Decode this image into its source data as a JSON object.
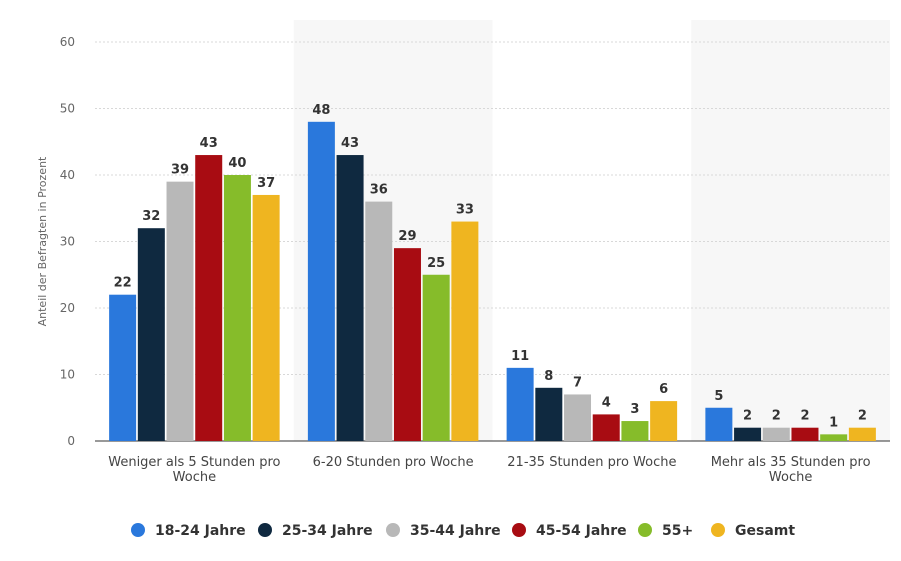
{
  "chart_data": {
    "type": "bar",
    "ylabel": "Anteil der Befragten in Prozent",
    "ylim": [
      0,
      60
    ],
    "yticks": [
      0,
      10,
      20,
      30,
      40,
      50,
      60
    ],
    "grid": true,
    "legend_position": "bottom",
    "categories": [
      [
        "Weniger als 5 Stunden pro",
        "Woche"
      ],
      [
        "6-20 Stunden pro Woche"
      ],
      [
        "21-35 Stunden pro Woche"
      ],
      [
        "Mehr als 35 Stunden pro",
        "Woche"
      ]
    ],
    "series": [
      {
        "name": "18-24 Jahre",
        "color": "#2a78dc",
        "values": [
          22,
          48,
          11,
          5
        ]
      },
      {
        "name": "25-34 Jahre",
        "color": "#0f2940",
        "values": [
          32,
          43,
          8,
          2
        ]
      },
      {
        "name": "35-44 Jahre",
        "color": "#b8b8b8",
        "values": [
          39,
          36,
          7,
          2
        ]
      },
      {
        "name": "45-54 Jahre",
        "color": "#a80c12",
        "values": [
          43,
          29,
          4,
          2
        ]
      },
      {
        "name": "55+",
        "color": "#86bc2a",
        "values": [
          40,
          25,
          3,
          1
        ]
      },
      {
        "name": "Gesamt",
        "color": "#efb520",
        "values": [
          37,
          33,
          6,
          2
        ]
      }
    ]
  }
}
